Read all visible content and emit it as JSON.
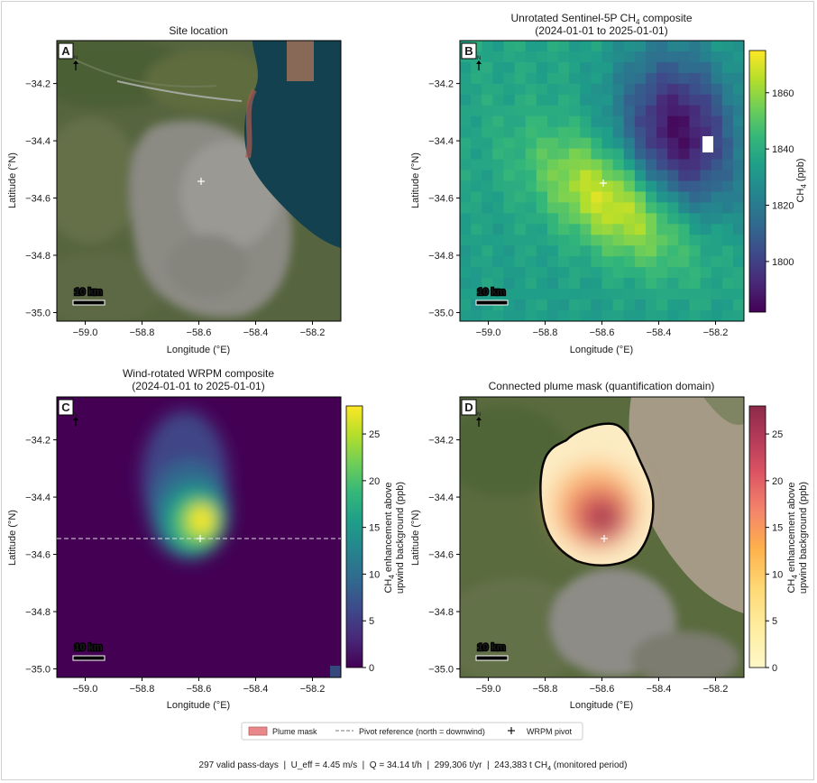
{
  "chart_data": [
    {
      "panel": "A",
      "type": "heatmap",
      "title": "Site location",
      "xlabel": "Longitude (°E)",
      "ylabel": "Latitude (°N)",
      "xlim": [
        -59.1,
        -58.1
      ],
      "ylim": [
        -35.03,
        -34.05
      ],
      "xticks": [
        -59.0,
        -58.8,
        -58.6,
        -58.4,
        -58.2
      ],
      "yticks": [
        -34.2,
        -34.4,
        -34.6,
        -34.8,
        -35.0
      ],
      "xtick_labels": [
        "−59.0",
        "−58.8",
        "−58.6",
        "−58.4",
        "−58.2"
      ],
      "ytick_labels": [
        "−34.2",
        "−34.4",
        "−34.6",
        "−34.8",
        "−35.0"
      ],
      "background": "satellite imagery",
      "pivot": {
        "lon": -58.59,
        "lat": -34.54
      },
      "scalebar": "10 km",
      "north_arrow": "N"
    },
    {
      "panel": "B",
      "type": "heatmap",
      "title_line1": "Unrotated Sentinel-5P CH",
      "title_sub": "4",
      "title_line1_tail": " composite",
      "title_line2": "(2024-01-01 to 2025-01-01)",
      "xlabel": "Longitude (°E)",
      "ylabel": "Latitude (°N)",
      "xlim": [
        -59.1,
        -58.1
      ],
      "ylim": [
        -35.03,
        -34.05
      ],
      "xticks": [
        -59.0,
        -58.8,
        -58.6,
        -58.4,
        -58.2
      ],
      "yticks": [
        -34.2,
        -34.4,
        -34.6,
        -34.8,
        -35.0
      ],
      "xtick_labels": [
        "−59.0",
        "−58.8",
        "−58.6",
        "−58.4",
        "−58.2"
      ],
      "ytick_labels": [
        "−34.2",
        "−34.4",
        "−34.6",
        "−34.8",
        "−35.0"
      ],
      "colorbar": {
        "label_pre": "CH",
        "label_sub": "4",
        "label_post": " (ppb)",
        "cmap": "viridis",
        "range": [
          1782,
          1875
        ],
        "ticks": [
          1800,
          1820,
          1840,
          1860
        ],
        "tick_labels": [
          "1800",
          "1820",
          "1840",
          "1860"
        ]
      },
      "field": {
        "background_ppb": 1835,
        "hotspot_ppb": 1872,
        "hotspot_center": {
          "lon": -58.55,
          "lat": -34.62
        },
        "low_ppb": 1785,
        "low_center": {
          "lon": -58.33,
          "lat": -34.37
        },
        "nodata_cell": {
          "lon": -58.23,
          "lat": -34.4
        }
      },
      "pivot": {
        "lon": -58.59,
        "lat": -34.54
      },
      "scalebar": "10 km",
      "north_arrow": "N"
    },
    {
      "panel": "C",
      "type": "heatmap",
      "title_line1": "Wind-rotated WRPM composite",
      "title_line2": "(2024-01-01 to 2025-01-01)",
      "xlabel": "Longitude (°E)",
      "ylabel": "Latitude (°N)",
      "xlim": [
        -59.1,
        -58.1
      ],
      "ylim": [
        -35.03,
        -34.05
      ],
      "xticks": [
        -59.0,
        -58.8,
        -58.6,
        -58.4,
        -58.2
      ],
      "yticks": [
        -34.2,
        -34.4,
        -34.6,
        -34.8,
        -35.0
      ],
      "xtick_labels": [
        "−59.0",
        "−58.8",
        "−58.6",
        "−58.4",
        "−58.2"
      ],
      "ytick_labels": [
        "−34.2",
        "−34.4",
        "−34.6",
        "−34.8",
        "−35.0"
      ],
      "colorbar": {
        "label_line1_pre": "CH",
        "label_line1_sub": "4",
        "label_line1_post": " enhancement above",
        "label_line2": "upwind background (ppb)",
        "cmap": "viridis",
        "range": [
          0,
          28
        ],
        "ticks": [
          0,
          5,
          10,
          15,
          20,
          25
        ],
        "tick_labels": [
          "0",
          "5",
          "10",
          "15",
          "20",
          "25"
        ]
      },
      "plume": {
        "peak_ppb": 28,
        "center": {
          "lon": -58.6,
          "lat": -34.49
        }
      },
      "pivot_line_lat": -34.54,
      "pivot": {
        "lon": -58.59,
        "lat": -34.54
      },
      "scalebar": "10 km",
      "north_arrow": "N"
    },
    {
      "panel": "D",
      "type": "heatmap",
      "title": "Connected plume mask (quantification domain)",
      "xlabel": "Longitude (°E)",
      "ylabel": "Latitude (°N)",
      "xlim": [
        -59.1,
        -58.1
      ],
      "ylim": [
        -35.03,
        -34.05
      ],
      "xticks": [
        -59.0,
        -58.8,
        -58.6,
        -58.4,
        -58.2
      ],
      "yticks": [
        -34.2,
        -34.4,
        -34.6,
        -34.8,
        -35.0
      ],
      "xtick_labels": [
        "−59.0",
        "−58.8",
        "−58.6",
        "−58.4",
        "−58.2"
      ],
      "ytick_labels": [
        "−34.2",
        "−34.4",
        "−34.6",
        "−34.8",
        "−35.0"
      ],
      "colorbar": {
        "label_line1_pre": "CH",
        "label_line1_sub": "4",
        "label_line1_post": " enhancement above",
        "label_line2": "upwind background (ppb)",
        "cmap": "YlOrRd",
        "range": [
          0,
          28
        ],
        "ticks": [
          0,
          5,
          10,
          15,
          20,
          25
        ],
        "tick_labels": [
          "0",
          "5",
          "10",
          "15",
          "20",
          "25"
        ]
      },
      "pivot": {
        "lon": -58.59,
        "lat": -34.54
      },
      "scalebar": "10 km",
      "north_arrow": "N"
    }
  ],
  "legend": {
    "items": [
      {
        "label": "Plume mask",
        "marker": "patch",
        "color": "#e8888a"
      },
      {
        "label": "Pivot reference (north = downwind)",
        "marker": "dashed-line",
        "color": "#777777"
      },
      {
        "label": "WRPM pivot",
        "marker": "plus",
        "color": "#111111"
      }
    ]
  },
  "footer": {
    "text": "297 valid pass-days  |  U_eff = 4.45 m/s  |  Q = 34.14 t/h  |  299,306 t/yr  |  243,383 t CH",
    "sub": "4",
    "tail": " (monitored period)"
  },
  "colors": {
    "viridis": [
      "#440154",
      "#482878",
      "#3e4989",
      "#31688e",
      "#26828e",
      "#1f9e89",
      "#35b779",
      "#6ece58",
      "#b5de2b",
      "#fde725"
    ],
    "ylorrd": [
      "#ffffcc",
      "#ffeda0",
      "#fed976",
      "#feb24c",
      "#fd8d3c",
      "#fc4e2a",
      "#e31a1c",
      "#bd0026",
      "#800026"
    ],
    "water": "#14414f",
    "land": "#5c6a48",
    "urban": "#8c8c86"
  }
}
